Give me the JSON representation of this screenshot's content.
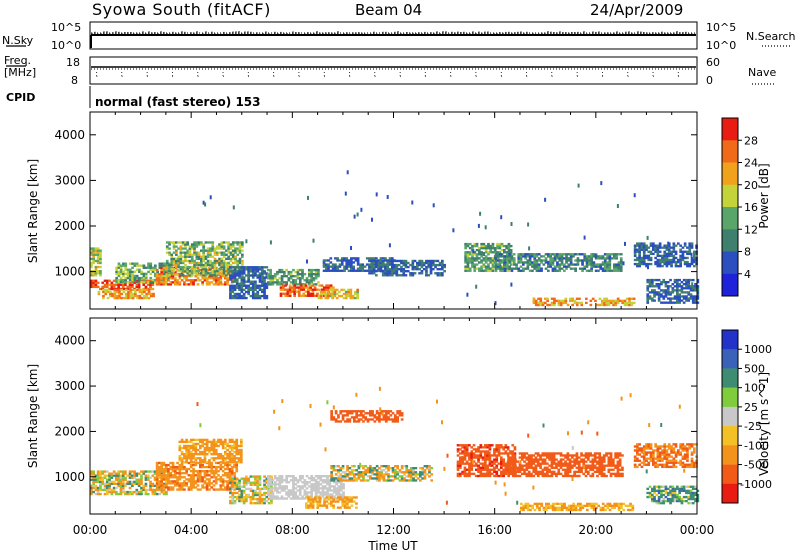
{
  "header": {
    "title": "Syowa South (fitACF)",
    "beam": "Beam 04",
    "date": "24/Apr/2009"
  },
  "noise_panel": {
    "left_label": "N.Sky",
    "right_label": "N.Search",
    "left_ticks": [
      "10^5",
      "10^0"
    ],
    "right_ticks": [
      "10^5",
      "10^0"
    ]
  },
  "freq_panel": {
    "left_label_1": "Freq.",
    "left_label_2": "[MHz]",
    "right_label": "Nave",
    "left_ticks": [
      "18",
      "8"
    ],
    "right_ticks": [
      "60",
      "0"
    ]
  },
  "cpid": {
    "label": "CPID",
    "text": "normal (fast stereo) 153"
  },
  "chart_data": [
    {
      "type": "heatmap",
      "quantity": "Power",
      "ylabel": "Slant Range [km]",
      "colorbar_label": "Power [dB]",
      "colorbar_ticks": [
        "28",
        "24",
        "20",
        "16",
        "12",
        "8",
        "4"
      ],
      "colorbar_range": [
        0,
        30
      ],
      "ylim": [
        180,
        4500
      ],
      "yticks": [
        "4000",
        "3000",
        "2000",
        "1000"
      ],
      "xlim_hours": [
        0,
        24
      ],
      "regions": [
        {
          "t": [
            0.0,
            0.4
          ],
          "r": [
            900,
            1500
          ],
          "v": [
            12,
            20
          ]
        },
        {
          "t": [
            0.0,
            2.5
          ],
          "r": [
            600,
            800
          ],
          "v": [
            22,
            30
          ]
        },
        {
          "t": [
            0.3,
            2.5
          ],
          "r": [
            400,
            600
          ],
          "v": [
            16,
            26
          ]
        },
        {
          "t": [
            1.0,
            3.2
          ],
          "r": [
            750,
            1200
          ],
          "v": [
            8,
            18
          ]
        },
        {
          "t": [
            2.6,
            5.6
          ],
          "r": [
            700,
            1100
          ],
          "v": [
            18,
            28
          ]
        },
        {
          "t": [
            3.0,
            6.0
          ],
          "r": [
            900,
            1650
          ],
          "v": [
            8,
            20
          ]
        },
        {
          "t": [
            5.5,
            7.0
          ],
          "r": [
            400,
            1100
          ],
          "v": [
            4,
            10
          ]
        },
        {
          "t": [
            7.0,
            9.0
          ],
          "r": [
            700,
            1050
          ],
          "v": [
            8,
            16
          ]
        },
        {
          "t": [
            7.5,
            9.6
          ],
          "r": [
            450,
            720
          ],
          "v": [
            20,
            30
          ]
        },
        {
          "t": [
            9.0,
            10.6
          ],
          "r": [
            400,
            600
          ],
          "v": [
            14,
            24
          ]
        },
        {
          "t": [
            9.2,
            12.0
          ],
          "r": [
            1000,
            1300
          ],
          "v": [
            4,
            10
          ]
        },
        {
          "t": [
            11.0,
            14.0
          ],
          "r": [
            900,
            1250
          ],
          "v": [
            4,
            10
          ]
        },
        {
          "t": [
            14.8,
            16.6
          ],
          "r": [
            1000,
            1600
          ],
          "v": [
            8,
            16
          ]
        },
        {
          "t": [
            16.0,
            21.0
          ],
          "r": [
            1000,
            1400
          ],
          "v": [
            6,
            14
          ]
        },
        {
          "t": [
            17.5,
            21.5
          ],
          "r": [
            250,
            400
          ],
          "v": [
            16,
            26
          ]
        },
        {
          "t": [
            21.5,
            24.0
          ],
          "r": [
            1100,
            1600
          ],
          "v": [
            4,
            10
          ]
        },
        {
          "t": [
            22.0,
            24.0
          ],
          "r": [
            300,
            800
          ],
          "v": [
            4,
            10
          ]
        }
      ],
      "sparse": [
        {
          "t": [
            9.5,
            12.4
          ],
          "r": [
            1900,
            3300
          ],
          "v": [
            4,
            9
          ]
        },
        {
          "t": [
            11.0,
            13.5
          ],
          "r": [
            2500,
            3300
          ],
          "v": [
            4,
            9
          ]
        },
        {
          "t": [
            19.0,
            22.0
          ],
          "r": [
            2500,
            3300
          ],
          "v": [
            4,
            10
          ]
        },
        {
          "t": [
            13.5,
            24.0
          ],
          "r": [
            300,
            2800
          ],
          "v": [
            4,
            10
          ]
        },
        {
          "t": [
            4.0,
            12.0
          ],
          "r": [
            1200,
            2800
          ],
          "v": [
            4,
            10
          ]
        }
      ]
    },
    {
      "type": "heatmap",
      "quantity": "Velocity",
      "ylabel": "Slant Range [km]",
      "colorbar_label": "Velocity [m s^-1]",
      "colorbar_ticks": [
        "1000",
        "500",
        "100",
        "25",
        "-25",
        "-100",
        "-500",
        "-1000"
      ],
      "colorbar_range": [
        -1200,
        1200
      ],
      "ylim": [
        180,
        4500
      ],
      "yticks": [
        "4000",
        "3000",
        "2000",
        "1000"
      ],
      "xlabel": "Time UT",
      "xticks": [
        "00:00",
        "04:00",
        "08:00",
        "12:00",
        "16:00",
        "20:00",
        "00:00"
      ],
      "xlim_hours": [
        0,
        24
      ],
      "regions": [
        {
          "t": [
            0.0,
            3.0
          ],
          "r": [
            600,
            1100
          ],
          "v": [
            -300,
            200
          ]
        },
        {
          "t": [
            2.6,
            5.8
          ],
          "r": [
            700,
            1300
          ],
          "v": [
            -600,
            -100
          ]
        },
        {
          "t": [
            3.5,
            6.0
          ],
          "r": [
            1300,
            1800
          ],
          "v": [
            -400,
            -50
          ]
        },
        {
          "t": [
            5.5,
            7.2
          ],
          "r": [
            400,
            1000
          ],
          "v": [
            -200,
            150
          ]
        },
        {
          "t": [
            7.0,
            10.0
          ],
          "r": [
            500,
            1000
          ],
          "v": [
            -20,
            20
          ]
        },
        {
          "t": [
            8.5,
            10.5
          ],
          "r": [
            300,
            550
          ],
          "v": [
            -150,
            -60
          ]
        },
        {
          "t": [
            9.5,
            13.5
          ],
          "r": [
            900,
            1250
          ],
          "v": [
            -400,
            300
          ]
        },
        {
          "t": [
            9.5,
            12.3
          ],
          "r": [
            2200,
            2450
          ],
          "v": [
            -900,
            -500
          ]
        },
        {
          "t": [
            14.5,
            16.8
          ],
          "r": [
            1000,
            1700
          ],
          "v": [
            -1100,
            -600
          ]
        },
        {
          "t": [
            16.5,
            21.0
          ],
          "r": [
            1000,
            1500
          ],
          "v": [
            -1000,
            -500
          ]
        },
        {
          "t": [
            17.0,
            21.5
          ],
          "r": [
            250,
            400
          ],
          "v": [
            -150,
            -60
          ]
        },
        {
          "t": [
            21.5,
            24.0
          ],
          "r": [
            1200,
            1700
          ],
          "v": [
            -700,
            -300
          ]
        },
        {
          "t": [
            22.0,
            24.0
          ],
          "r": [
            400,
            800
          ],
          "v": [
            -100,
            600
          ]
        }
      ],
      "sparse": [
        {
          "t": [
            9.5,
            12.4
          ],
          "r": [
            2500,
            3300
          ],
          "v": [
            -600,
            -50
          ]
        },
        {
          "t": [
            19.0,
            22.0
          ],
          "r": [
            2500,
            3300
          ],
          "v": [
            -600,
            -50
          ]
        },
        {
          "t": [
            13.5,
            24.0
          ],
          "r": [
            300,
            2800
          ],
          "v": [
            -800,
            300
          ]
        },
        {
          "t": [
            4.0,
            12.0
          ],
          "r": [
            1200,
            2800
          ],
          "v": [
            -600,
            200
          ]
        }
      ]
    }
  ]
}
